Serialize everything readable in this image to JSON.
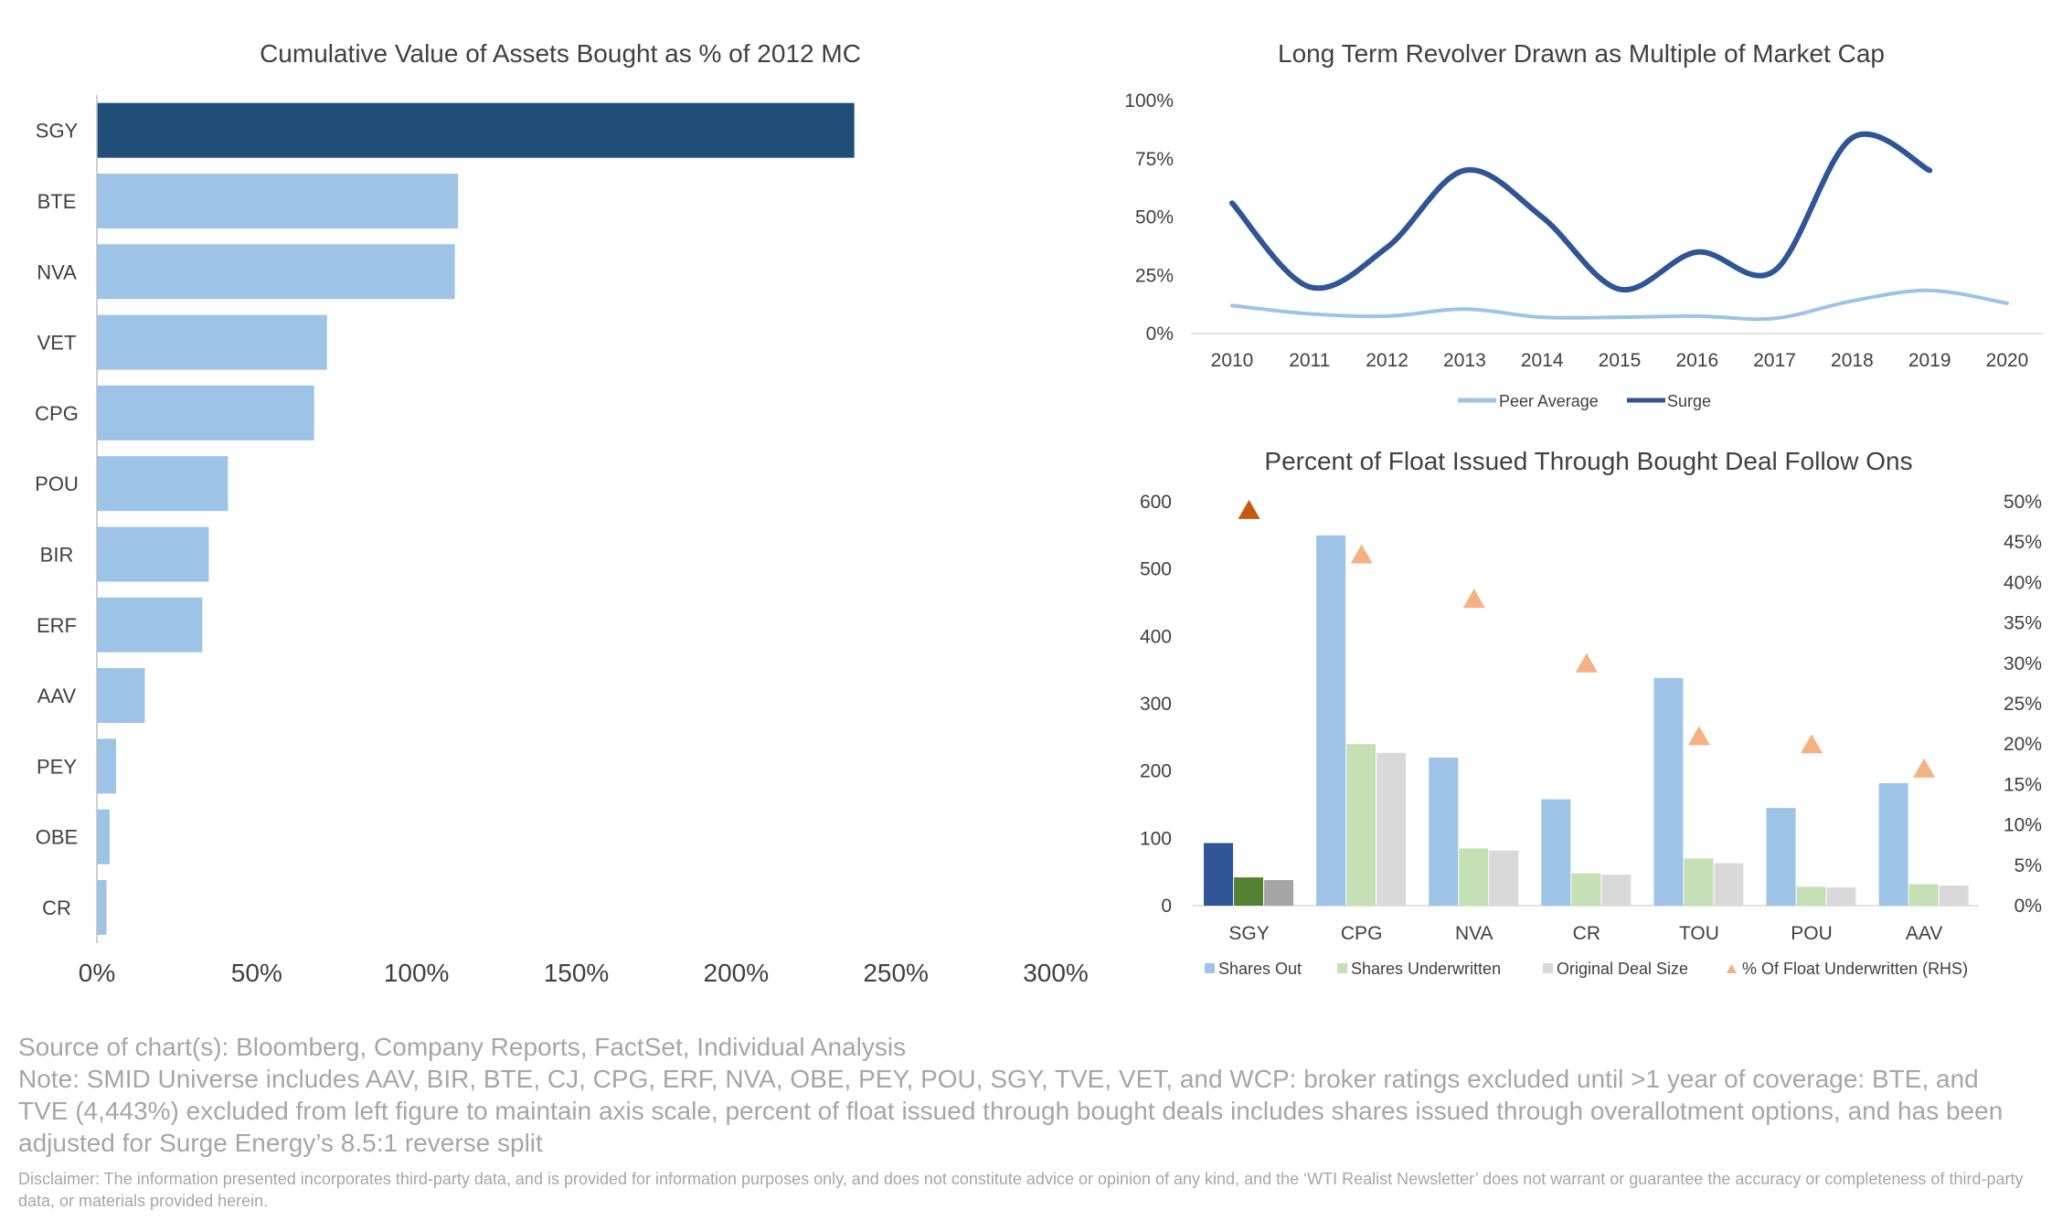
{
  "colors": {
    "dark_blue": "#1f4e79",
    "navy": "#2f5597",
    "light_blue": "#9dc3e6",
    "light_green": "#c5e0b4",
    "dark_green": "#548235",
    "light_gray": "#d9d9d9",
    "dark_gray": "#a5a5a5",
    "orange": "#f4b183",
    "dark_orange": "#c55a11",
    "axis": "#bfbfbf",
    "footer_text": "#a6a6a6"
  },
  "chart_data": [
    {
      "type": "bar",
      "orientation": "horizontal",
      "title": "Cumulative Value of Assets Bought as % of 2012 MC",
      "categories": [
        "SGY",
        "BTE",
        "NVA",
        "VET",
        "CPG",
        "POU",
        "BIR",
        "ERF",
        "AAV",
        "PEY",
        "OBE",
        "CR"
      ],
      "values": [
        237,
        113,
        112,
        72,
        68,
        41,
        35,
        33,
        15,
        6,
        4,
        3
      ],
      "highlight": "SGY",
      "xlim": [
        0,
        300
      ],
      "xticks": [
        "0%",
        "50%",
        "100%",
        "150%",
        "200%",
        "250%",
        "300%"
      ],
      "grid": false
    },
    {
      "type": "line",
      "title": "Long Term Revolver Drawn as Multiple of Market Cap",
      "x": [
        "2010",
        "2011",
        "2012",
        "2013",
        "2014",
        "2015",
        "2016",
        "2017",
        "2018",
        "2019",
        "2020"
      ],
      "series": [
        {
          "name": "Peer Average",
          "values": [
            12,
            8.5,
            7.5,
            10.5,
            7,
            7,
            7.5,
            6.5,
            14,
            18.5,
            13
          ]
        },
        {
          "name": "Surge",
          "values": [
            56,
            20,
            37,
            70,
            50,
            19,
            35,
            27,
            84,
            70,
            null
          ]
        }
      ],
      "ylim": [
        0,
        100
      ],
      "yticks": [
        "0%",
        "25%",
        "50%",
        "75%",
        "100%"
      ],
      "legend": "bottom",
      "grid": false
    },
    {
      "type": "bar",
      "title": "Percent of Float Issued Through Bought Deal Follow Ons",
      "categories": [
        "SGY",
        "CPG",
        "NVA",
        "CR",
        "TOU",
        "POU",
        "AAV"
      ],
      "series": [
        {
          "name": "Shares Out",
          "values": [
            93,
            550,
            220,
            158,
            338,
            145,
            182
          ]
        },
        {
          "name": "Shares Underwritten",
          "values": [
            42,
            240,
            85,
            48,
            70,
            28,
            32
          ]
        },
        {
          "name": "Original Deal Size",
          "values": [
            38,
            227,
            82,
            46,
            63,
            27,
            30
          ]
        },
        {
          "name": "% Of Float Underwritten (RHS)",
          "values": [
            49,
            43.5,
            38,
            30,
            21,
            20,
            17
          ],
          "axis": "right",
          "marker": "triangle"
        }
      ],
      "ylim": [
        0,
        600
      ],
      "yticks": [
        "0",
        "100",
        "200",
        "300",
        "400",
        "500",
        "600"
      ],
      "y2lim": [
        0,
        50
      ],
      "y2ticks": [
        "0%",
        "5%",
        "10%",
        "15%",
        "20%",
        "25%",
        "30%",
        "35%",
        "40%",
        "45%",
        "50%"
      ],
      "highlight": "SGY",
      "legend": "bottom",
      "grid": false
    }
  ],
  "footer": {
    "source": "Source of chart(s): Bloomberg, Company Reports, FactSet, Individual Analysis",
    "note": "Note: SMID Universe includes AAV, BIR, BTE, CJ, CPG, ERF, NVA, OBE, PEY, POU, SGY, TVE, VET, and WCP: broker ratings excluded until >1 year of coverage: BTE, and TVE (4,443%) excluded from left figure to maintain axis scale, percent of float issued through bought deals includes shares issued through overallotment options, and has been adjusted for Surge Energy’s 8.5:1 reverse split",
    "disclaimer": "Disclaimer: The information presented incorporates third-party data, and is provided for information purposes only, and does not constitute advice or opinion of any kind, and the ‘WTI Realist Newsletter’ does not warrant or guarantee the accuracy or completeness of third-party data, or materials provided herein."
  }
}
